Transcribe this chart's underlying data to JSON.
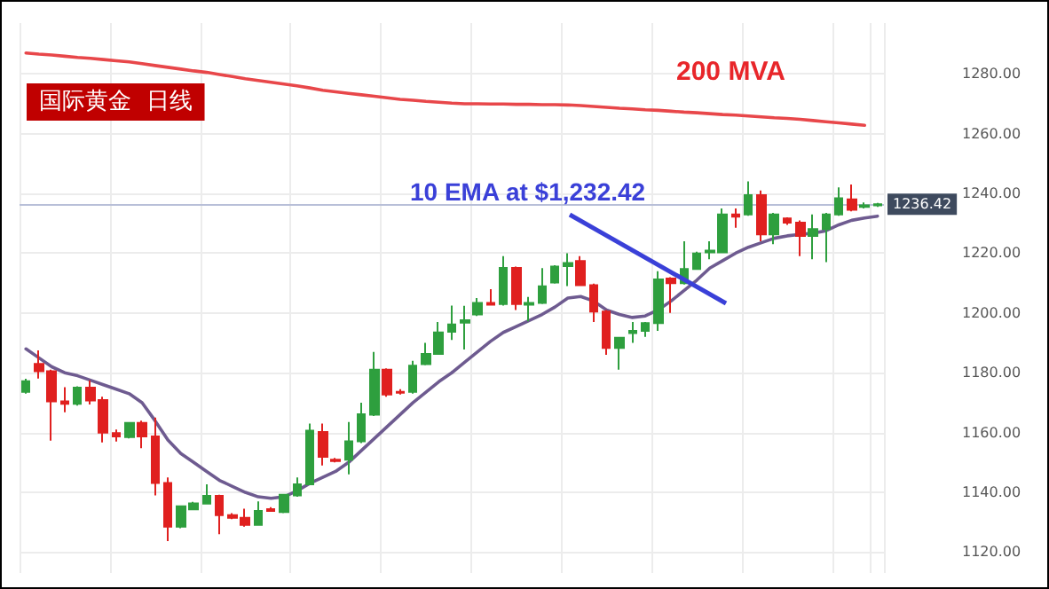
{
  "chart_data": {
    "type": "candlestick",
    "title": "国际黄金  日线",
    "annotations": [
      "200 MVA",
      "10 EMA at $1,232.42"
    ],
    "categories": [
      null,
      null,
      null,
      null,
      null,
      null,
      null,
      null,
      null,
      null,
      null,
      null,
      null,
      null,
      null,
      null,
      null,
      null,
      null,
      null,
      null,
      null,
      null,
      null,
      null,
      null,
      null,
      null,
      null,
      null,
      null,
      null,
      null,
      null,
      null,
      null,
      null,
      null,
      null,
      null,
      null,
      null,
      null,
      null,
      null,
      null,
      null,
      null,
      null,
      null,
      null,
      null,
      null,
      null,
      null,
      null,
      null,
      null,
      null,
      null,
      null,
      null,
      null,
      null,
      null,
      null,
      null
    ],
    "ohlc": [
      [
        1173.6,
        1178,
        1173,
        1177.2
      ],
      [
        1183,
        1187.5,
        1178.1,
        1180.5
      ],
      [
        1180.5,
        1181,
        1157.3,
        1170.4
      ],
      [
        1170.4,
        1175.2,
        1166.8,
        1169.6
      ],
      [
        1169.6,
        1175.5,
        1169,
        1175
      ],
      [
        1175,
        1177.5,
        1169.4,
        1170.7
      ],
      [
        1170.9,
        1172,
        1156.7,
        1160
      ],
      [
        1159.8,
        1161,
        1157,
        1158.7
      ],
      [
        1158.5,
        1163.5,
        1158,
        1163.2
      ],
      [
        1163.2,
        1164,
        1154.8,
        1158.7
      ],
      [
        1158.7,
        1165,
        1139,
        1143.1
      ],
      [
        1143.1,
        1145,
        1123.7,
        1128.5
      ],
      [
        1128.5,
        1135.5,
        1128,
        1135.3
      ],
      [
        1134.3,
        1136.8,
        1134,
        1136.3
      ],
      [
        1136.2,
        1142.7,
        1136,
        1138.8
      ],
      [
        1138.8,
        1139.2,
        1126,
        1132.4
      ],
      [
        1132.4,
        1133,
        1131,
        1131.5
      ],
      [
        1131.5,
        1134.5,
        1128.5,
        1129.1
      ],
      [
        1129.1,
        1137,
        1129,
        1133.8
      ],
      [
        1134.4,
        1135,
        1133.5,
        1133.8
      ],
      [
        1133.4,
        1139.5,
        1133,
        1139.2
      ],
      [
        1139,
        1145,
        1138.5,
        1142.7
      ],
      [
        1142.7,
        1163,
        1142.5,
        1160.6
      ],
      [
        1160.2,
        1163,
        1149,
        1151.9
      ],
      [
        1150.9,
        1151.5,
        1150,
        1150.5
      ],
      [
        1150.9,
        1163.5,
        1146,
        1157.1
      ],
      [
        1157.1,
        1170,
        1156.5,
        1166.1
      ],
      [
        1166,
        1187,
        1165.5,
        1181
      ],
      [
        1181,
        1181.5,
        1172,
        1172.7
      ],
      [
        1173.6,
        1174.5,
        1172.7,
        1173.3
      ],
      [
        1173.6,
        1184,
        1173,
        1182.4
      ],
      [
        1182.9,
        1190,
        1182.5,
        1186.3
      ],
      [
        1186.3,
        1197,
        1186,
        1193.5
      ],
      [
        1193.7,
        1202.5,
        1191,
        1196.2
      ],
      [
        1196.8,
        1202.4,
        1187.8,
        1197.6
      ],
      [
        1199.5,
        1205,
        1199,
        1203.4
      ],
      [
        1203.4,
        1208,
        1202.5,
        1202.8
      ],
      [
        1203,
        1219,
        1202.5,
        1215.1
      ],
      [
        1215.1,
        1215.5,
        1201,
        1203
      ],
      [
        1202.8,
        1205.4,
        1197.2,
        1203.4
      ],
      [
        1203.4,
        1215,
        1203,
        1208.9
      ],
      [
        1210.2,
        1216,
        1209.8,
        1215.5
      ],
      [
        1215.7,
        1220,
        1209,
        1216.7
      ],
      [
        1217.4,
        1219,
        1209,
        1209.3
      ],
      [
        1209.3,
        1209.8,
        1197,
        1200.5
      ],
      [
        1200.5,
        1201,
        1186,
        1188.3
      ],
      [
        1188.3,
        1192,
        1181,
        1191.7
      ],
      [
        1193.3,
        1197,
        1190,
        1194
      ],
      [
        1194,
        1197,
        1192,
        1196.6
      ],
      [
        1196.6,
        1214,
        1194,
        1211.2
      ],
      [
        1211.5,
        1212,
        1200,
        1210
      ],
      [
        1210,
        1224,
        1209.5,
        1214.7
      ],
      [
        1214.7,
        1220.5,
        1214.5,
        1219.9
      ],
      [
        1220.3,
        1224,
        1218,
        1220.9
      ],
      [
        1220.3,
        1235,
        1220,
        1233
      ],
      [
        1233,
        1235,
        1228.5,
        1232.2
      ],
      [
        1233,
        1244,
        1232.5,
        1239.4
      ],
      [
        1239.4,
        1241,
        1224,
        1226.3
      ],
      [
        1226.3,
        1233.5,
        1223,
        1233
      ],
      [
        1231.6,
        1232,
        1229.5,
        1230.2
      ],
      [
        1230.2,
        1231,
        1219,
        1225.8
      ],
      [
        1225.8,
        1233,
        1218,
        1228.1
      ],
      [
        1228.1,
        1233.5,
        1217,
        1233
      ],
      [
        1233,
        1242,
        1232.5,
        1238.4
      ],
      [
        1238,
        1243,
        1234,
        1234.5
      ],
      [
        1235.5,
        1237,
        1235,
        1236
      ],
      [
        1236,
        1236.8,
        1235.5,
        1236.42
      ]
    ],
    "colors": [
      "#2e9f3e",
      "#e0201f",
      "#e0201f",
      "#e0201f",
      "#2e9f3e",
      "#e0201f",
      "#e0201f",
      "#e0201f",
      "#2e9f3e",
      "#e0201f",
      "#e0201f",
      "#e0201f",
      "#2e9f3e",
      "#2e9f3e",
      "#2e9f3e",
      "#e0201f",
      "#e0201f",
      "#e0201f",
      "#2e9f3e",
      "#e0201f",
      "#2e9f3e",
      "#2e9f3e",
      "#2e9f3e",
      "#e0201f",
      "#e0201f",
      "#2e9f3e",
      "#2e9f3e",
      "#2e9f3e",
      "#e0201f",
      "#e0201f",
      "#2e9f3e",
      "#2e9f3e",
      "#2e9f3e",
      "#2e9f3e",
      "#2e9f3e",
      "#2e9f3e",
      "#e0201f",
      "#2e9f3e",
      "#e0201f",
      "#2e9f3e",
      "#2e9f3e",
      "#2e9f3e",
      "#2e9f3e",
      "#e0201f",
      "#e0201f",
      "#e0201f",
      "#2e9f3e",
      "#2e9f3e",
      "#2e9f3e",
      "#2e9f3e",
      "#e0201f",
      "#2e9f3e",
      "#2e9f3e",
      "#2e9f3e",
      "#2e9f3e",
      "#e0201f",
      "#2e9f3e",
      "#e0201f",
      "#2e9f3e",
      "#e0201f",
      "#e0201f",
      "#2e9f3e",
      "#2e9f3e",
      "#2e9f3e",
      "#e0201f",
      "#2e9f3e",
      "#2e9f3e"
    ],
    "series": [
      {
        "type": "line",
        "color": "#6e5b90",
        "values": [
          1188,
          1185,
          1182,
          1180,
          1179,
          1177.5,
          1176,
          1174.5,
          1173,
          1170,
          1164,
          1157.5,
          1153,
          1150,
          1147,
          1144,
          1142,
          1140,
          1138.5,
          1138,
          1138.5,
          1140.5,
          1143,
          1145,
          1147,
          1150,
          1154,
          1158,
          1162,
          1166,
          1170,
          1173.5,
          1177,
          1180,
          1183.5,
          1187,
          1190.5,
          1193.5,
          1195.5,
          1197.5,
          1199.5,
          1202,
          1205,
          1205.5,
          1204,
          1201,
          1199.5,
          1198.5,
          1199,
          1201,
          1204,
          1207.5,
          1211,
          1215,
          1217.5,
          1220,
          1222,
          1223.5,
          1225,
          1225.8,
          1226.3,
          1226.7,
          1227.5,
          1229.5,
          1231,
          1231.8,
          1232.4
        ]
      },
      {
        "type": "line",
        "color": "#e8474a",
        "values": [
          1287,
          1286.6,
          1286.3,
          1285.9,
          1285.5,
          1285.2,
          1284.8,
          1284.4,
          1284,
          1283.4,
          1282.8,
          1282.2,
          1281.6,
          1281,
          1280.5,
          1279.8,
          1279.1,
          1278.4,
          1277.8,
          1277.2,
          1276.6,
          1276,
          1275.3,
          1274.5,
          1274,
          1273.5,
          1273,
          1272.5,
          1272,
          1271.5,
          1271.2,
          1270.8,
          1270.5,
          1270.2,
          1270,
          1270,
          1269.9,
          1269.9,
          1269.8,
          1269.8,
          1269.7,
          1269.7,
          1269.6,
          1269.4,
          1269.1,
          1268.8,
          1268.5,
          1268.3,
          1268,
          1267.8,
          1267.5,
          1267.2,
          1267,
          1266.7,
          1266.4,
          1266.2,
          1265.9,
          1265.6,
          1265.3,
          1265.1,
          1264.8,
          1264.4,
          1264,
          1263.6,
          1263.2,
          1262.8,
          null
        ]
      }
    ],
    "ylim": [
      1113,
      1297
    ],
    "yticks": [
      {
        "value": 1120,
        "label": "1120.00"
      },
      {
        "value": 1140,
        "label": "1140.00"
      },
      {
        "value": 1160,
        "label": "1160.00"
      },
      {
        "value": 1180,
        "label": "1180.00"
      },
      {
        "value": 1200,
        "label": "1200.00"
      },
      {
        "value": 1220,
        "label": "1220.00"
      },
      {
        "value": 1240,
        "label": "1240.00"
      },
      {
        "value": 1260,
        "label": "1260.00"
      },
      {
        "value": 1280,
        "label": "1280.00"
      }
    ],
    "ref_lines": [
      {
        "axis": "y",
        "value": 1236.42,
        "label": "1236.42",
        "color": "#b8bfd8"
      }
    ],
    "grid": true,
    "line_style": "solid"
  }
}
